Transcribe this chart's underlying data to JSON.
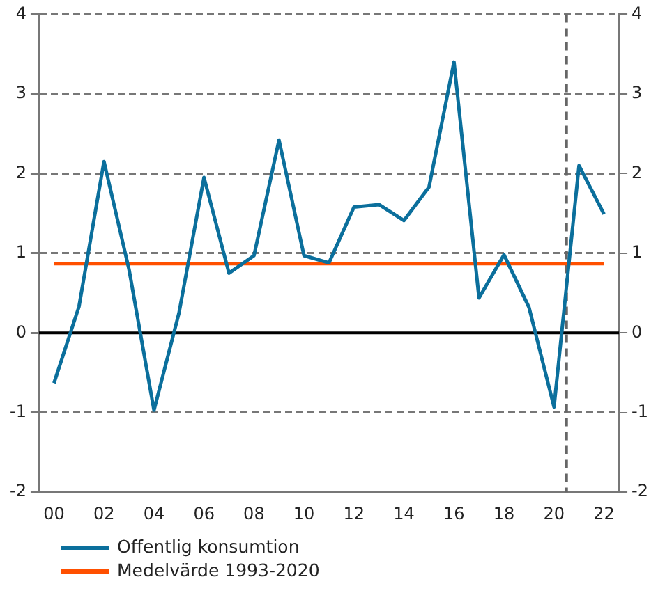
{
  "chart_data": {
    "type": "line",
    "x": [
      2000,
      2001,
      2002,
      2003,
      2004,
      2005,
      2006,
      2007,
      2008,
      2009,
      2010,
      2011,
      2012,
      2013,
      2014,
      2015,
      2016,
      2017,
      2018,
      2019,
      2020,
      2021,
      2022
    ],
    "series": [
      {
        "name": "Offentlig konsumtion",
        "color": "#0b6f9c",
        "values": [
          -0.63,
          0.33,
          2.15,
          0.8,
          -0.97,
          0.25,
          1.95,
          0.75,
          0.97,
          2.42,
          0.97,
          0.88,
          1.58,
          1.61,
          1.41,
          1.83,
          3.4,
          0.44,
          0.98,
          0.32,
          -0.93,
          2.1,
          1.49
        ]
      },
      {
        "name": "Medelvärde 1993-2020",
        "color": "#ff5000",
        "values": [
          0.87,
          0.87,
          0.87,
          0.87,
          0.87,
          0.87,
          0.87,
          0.87,
          0.87,
          0.87,
          0.87,
          0.87,
          0.87,
          0.87,
          0.87,
          0.87,
          0.87,
          0.87,
          0.87,
          0.87,
          0.87,
          0.87,
          0.87
        ]
      }
    ],
    "xlim": [
      1999.4,
      2022.6
    ],
    "xticks": [
      {
        "value": 2000,
        "label": "00"
      },
      {
        "value": 2002,
        "label": "02"
      },
      {
        "value": 2004,
        "label": "04"
      },
      {
        "value": 2006,
        "label": "06"
      },
      {
        "value": 2008,
        "label": "08"
      },
      {
        "value": 2010,
        "label": "10"
      },
      {
        "value": 2012,
        "label": "12"
      },
      {
        "value": 2014,
        "label": "14"
      },
      {
        "value": 2016,
        "label": "16"
      },
      {
        "value": 2018,
        "label": "18"
      },
      {
        "value": 2020,
        "label": "20"
      },
      {
        "value": 2022,
        "label": "22"
      }
    ],
    "ylim": [
      -2,
      4
    ],
    "yticks": [
      -2,
      -1,
      0,
      1,
      2,
      3,
      4
    ],
    "y2lim": [
      -2,
      4
    ],
    "y2ticks": [
      -2,
      -1,
      0,
      1,
      2,
      3,
      4
    ],
    "ref_lines": [
      {
        "axis": "y",
        "value": 0,
        "color": "#000000",
        "line_style": "solid"
      },
      {
        "axis": "x",
        "value": 2020.5,
        "color": "#666666",
        "line_style": "dashed"
      }
    ],
    "grid": "y",
    "legend": "bottom left",
    "marker": "none",
    "line_style": "solid"
  }
}
